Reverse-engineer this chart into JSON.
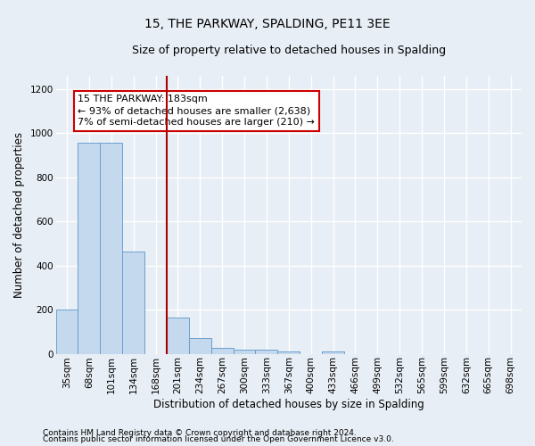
{
  "title": "15, THE PARKWAY, SPALDING, PE11 3EE",
  "subtitle": "Size of property relative to detached houses in Spalding",
  "xlabel": "Distribution of detached houses by size in Spalding",
  "ylabel": "Number of detached properties",
  "footnote1": "Contains HM Land Registry data © Crown copyright and database right 2024.",
  "footnote2": "Contains public sector information licensed under the Open Government Licence v3.0.",
  "categories": [
    "35sqm",
    "68sqm",
    "101sqm",
    "134sqm",
    "168sqm",
    "201sqm",
    "234sqm",
    "267sqm",
    "300sqm",
    "333sqm",
    "367sqm",
    "400sqm",
    "433sqm",
    "466sqm",
    "499sqm",
    "532sqm",
    "565sqm",
    "599sqm",
    "632sqm",
    "665sqm",
    "698sqm"
  ],
  "values": [
    200,
    955,
    957,
    463,
    0,
    163,
    70,
    26,
    20,
    17,
    11,
    0,
    11,
    0,
    0,
    0,
    0,
    0,
    0,
    0,
    0
  ],
  "bar_color": "#c5d9ee",
  "bar_edge_color": "#6b9fcf",
  "vline_x_index": 4,
  "vline_color": "#aa0000",
  "annotation_text": "15 THE PARKWAY: 183sqm\n← 93% of detached houses are smaller (2,638)\n7% of semi-detached houses are larger (210) →",
  "annotation_box_color": "#cc0000",
  "annotation_fill": "#ffffff",
  "ylim": [
    0,
    1260
  ],
  "yticks": [
    0,
    200,
    400,
    600,
    800,
    1000,
    1200
  ],
  "bg_color": "#e8eef5",
  "grid_color": "#ffffff",
  "title_fontsize": 10,
  "subtitle_fontsize": 9,
  "axis_fontsize": 8.5,
  "tick_fontsize": 7.5,
  "annotation_fontsize": 8
}
